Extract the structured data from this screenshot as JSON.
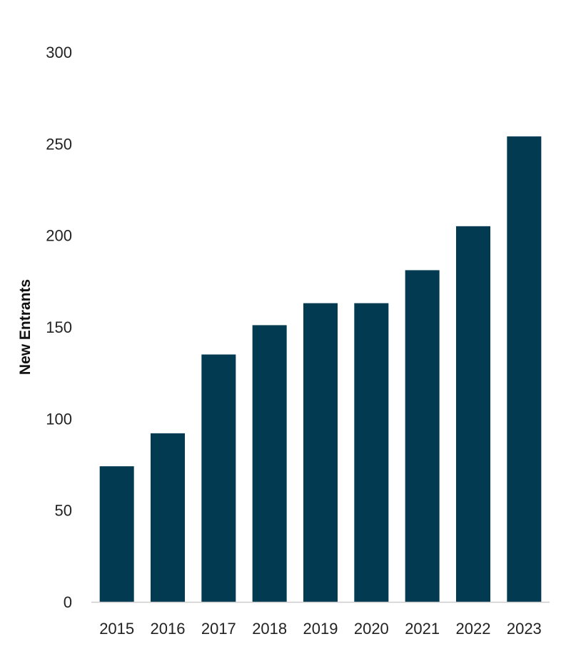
{
  "chart_data": {
    "type": "bar",
    "title": "",
    "xlabel": "",
    "ylabel": "New Entrants",
    "categories": [
      "2015",
      "2016",
      "2017",
      "2018",
      "2019",
      "2020",
      "2021",
      "2022",
      "2023"
    ],
    "values": [
      74,
      92,
      135,
      151,
      163,
      163,
      181,
      205,
      254
    ],
    "ylim": [
      0,
      300
    ],
    "yticks": [
      "0",
      "50",
      "100",
      "150",
      "200",
      "250",
      "300"
    ],
    "grid": false,
    "legend": "none",
    "bar_color": "#023a52",
    "axis_color": "#cccccc"
  }
}
